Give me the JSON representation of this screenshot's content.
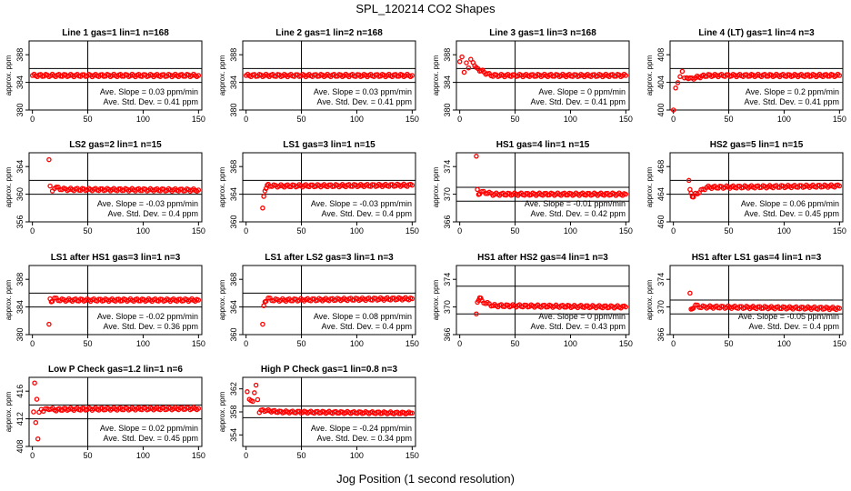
{
  "title": "SPL_120214  CO2 Shapes",
  "xlabel": "Jog Position (1 second resolution)",
  "colors": {
    "points": "#ff0000",
    "axes": "#000000",
    "background": "#ffffff"
  },
  "chart_data": [
    {
      "type": "scatter",
      "title": "Line 1 gas=1 lin=1 n=168",
      "ylabel": "approx. ppm",
      "xlim": [
        -3,
        153
      ],
      "ylim": [
        380,
        390
      ],
      "yticks": [
        380,
        384,
        388
      ],
      "xticks": [
        0,
        50,
        100,
        150
      ],
      "hlines": [
        386,
        384
      ],
      "vline": 50,
      "slope_text": "Ave. Slope = 0.03  ppm/min",
      "std_text": "Ave. Std. Dev. = 0.41  ppm",
      "series": [
        {
          "x": [
            0,
            150
          ],
          "y": [
            385,
            385
          ]
        }
      ]
    },
    {
      "type": "scatter",
      "title": "Line 2 gas=1 lin=2 n=168",
      "ylabel": "approx. ppm",
      "xlim": [
        -3,
        153
      ],
      "ylim": [
        380,
        390
      ],
      "yticks": [
        380,
        384,
        388
      ],
      "xticks": [
        0,
        50,
        100,
        150
      ],
      "hlines": [
        386,
        384
      ],
      "vline": 50,
      "slope_text": "Ave. Slope = 0.03  ppm/min",
      "std_text": "Ave. Std. Dev. = 0.41  ppm",
      "series": [
        {
          "x": [
            0,
            150
          ],
          "y": [
            385,
            385
          ]
        }
      ]
    },
    {
      "type": "scatter",
      "title": "Line 3 gas=1 lin=3 n=168",
      "ylabel": "approx. ppm",
      "xlim": [
        -3,
        153
      ],
      "ylim": [
        380,
        390
      ],
      "yticks": [
        380,
        384,
        388
      ],
      "xticks": [
        0,
        50,
        100,
        150
      ],
      "hlines": [
        386,
        384
      ],
      "vline": 50,
      "slope_text": "Ave. Slope = 0  ppm/min",
      "std_text": "Ave. Std. Dev. = 0.41  ppm",
      "series": [
        {
          "x": [
            0,
            2,
            4,
            6,
            8,
            10,
            12,
            15,
            18,
            22,
            25,
            30,
            150
          ],
          "y": [
            387,
            387.5,
            385.5,
            387,
            386,
            387.2,
            387,
            386,
            385.8,
            385.5,
            385.2,
            385,
            385
          ]
        }
      ]
    },
    {
      "type": "scatter",
      "title": "Line 4 (LT) gas=1 lin=4 n=3",
      "ylabel": "approx. ppm",
      "xlim": [
        -3,
        153
      ],
      "ylim": [
        400,
        410
      ],
      "yticks": [
        400,
        404,
        408
      ],
      "xticks": [
        0,
        50,
        100,
        150
      ],
      "hlines": [
        406,
        404
      ],
      "vline": 50,
      "slope_text": "Ave. Slope = 0.2  ppm/min",
      "std_text": "Ave. Std. Dev. = 0.41  ppm",
      "series": [
        {
          "x": [
            0,
            2,
            4,
            6,
            8,
            10,
            12,
            15,
            20,
            30,
            150
          ],
          "y": [
            400,
            403,
            404,
            405,
            405.5,
            404.5,
            404.8,
            404.5,
            404.7,
            405,
            405
          ]
        }
      ]
    },
    {
      "type": "scatter",
      "title": "LS2 gas=2 lin=1 n=15",
      "ylabel": "approx. ppm",
      "xlim": [
        -3,
        153
      ],
      "ylim": [
        356,
        366
      ],
      "yticks": [
        356,
        360,
        364
      ],
      "xticks": [
        0,
        50,
        100,
        150
      ],
      "hlines": [
        362,
        360
      ],
      "vline": 50,
      "slope_text": "Ave. Slope = -0.03  ppm/min",
      "std_text": "Ave. Std. Dev. = 0.4  ppm",
      "series": [
        {
          "x": [
            15,
            16,
            18,
            20,
            25,
            30,
            150
          ],
          "y": [
            365,
            361,
            360.5,
            361,
            360.8,
            360.7,
            360.6
          ]
        }
      ]
    },
    {
      "type": "scatter",
      "title": "LS1 gas=3 lin=1 n=15",
      "ylabel": "approx. ppm",
      "xlim": [
        -3,
        153
      ],
      "ylim": [
        360,
        370
      ],
      "yticks": [
        360,
        364,
        368
      ],
      "xticks": [
        0,
        50,
        100,
        150
      ],
      "hlines": [
        366,
        364
      ],
      "vline": 50,
      "slope_text": "Ave. Slope = -0.03  ppm/min",
      "std_text": "Ave. Std. Dev. = 0.4  ppm",
      "series": [
        {
          "x": [
            15,
            16,
            17,
            18,
            19,
            20,
            25,
            30,
            150
          ],
          "y": [
            362,
            363.5,
            364.5,
            365,
            365.2,
            365.3,
            365.2,
            365.2,
            365.3
          ]
        }
      ]
    },
    {
      "type": "scatter",
      "title": "HS1 gas=4 lin=1 n=15",
      "ylabel": "approx. ppm",
      "xlim": [
        -3,
        153
      ],
      "ylim": [
        366,
        376
      ],
      "yticks": [
        366,
        370,
        374
      ],
      "xticks": [
        0,
        50,
        100,
        150
      ],
      "hlines": [
        371,
        369
      ],
      "vline": 50,
      "slope_text": "Ave. Slope = -0.01  ppm/min",
      "std_text": "Ave. Std. Dev. = 0.42  ppm",
      "series": [
        {
          "x": [
            15,
            16,
            17,
            18,
            20,
            25,
            30,
            150
          ],
          "y": [
            375.5,
            370.5,
            370,
            370.2,
            370.3,
            370.2,
            370,
            370
          ]
        }
      ]
    },
    {
      "type": "scatter",
      "title": "HS2 gas=5 lin=1 n=15",
      "ylabel": "approx. ppm",
      "xlim": [
        -3,
        153
      ],
      "ylim": [
        460,
        470
      ],
      "yticks": [
        460,
        464,
        468
      ],
      "xticks": [
        0,
        50,
        100,
        150
      ],
      "hlines": [
        466,
        464
      ],
      "vline": 50,
      "slope_text": "Ave. Slope = 0.06  ppm/min",
      "std_text": "Ave. Std. Dev. = 0.45  ppm",
      "series": [
        {
          "x": [
            14,
            15,
            16,
            17,
            18,
            20,
            25,
            30,
            150
          ],
          "y": [
            466,
            464.5,
            464.2,
            463.8,
            463.5,
            464,
            464.5,
            465,
            465.2
          ]
        }
      ]
    },
    {
      "type": "scatter",
      "title": "LS1 after HS1 gas=3 lin=1 n=3",
      "ylabel": "approx. ppm",
      "xlim": [
        -3,
        153
      ],
      "ylim": [
        380,
        390
      ],
      "yticks": [
        380,
        384,
        388
      ],
      "xticks": [
        0,
        50,
        100,
        150
      ],
      "hlines": [
        386,
        384
      ],
      "vline": 50,
      "slope_text": "Ave. Slope = -0.02  ppm/min",
      "std_text": "Ave. Std. Dev. = 0.36  ppm",
      "series": [
        {
          "x": [
            15,
            16,
            17,
            18,
            20,
            25,
            30,
            150
          ],
          "y": [
            381.5,
            385,
            384.8,
            385,
            385.2,
            385,
            385,
            385
          ]
        }
      ]
    },
    {
      "type": "scatter",
      "title": "LS1 after LS2 gas=3 lin=1 n=3",
      "ylabel": "approx. ppm",
      "xlim": [
        -3,
        153
      ],
      "ylim": [
        360,
        370
      ],
      "yticks": [
        360,
        364,
        368
      ],
      "xticks": [
        0,
        50,
        100,
        150
      ],
      "hlines": [
        366,
        364
      ],
      "vline": 50,
      "slope_text": "Ave. Slope = 0.08  ppm/min",
      "std_text": "Ave. Std. Dev. = 0.4  ppm",
      "series": [
        {
          "x": [
            15,
            16,
            17,
            18,
            20,
            25,
            30,
            150
          ],
          "y": [
            361.5,
            364,
            364.8,
            365,
            365.2,
            365,
            365,
            365.2
          ]
        }
      ]
    },
    {
      "type": "scatter",
      "title": "HS1 after HS2 gas=4 lin=1 n=3",
      "ylabel": "approx. ppm",
      "xlim": [
        -3,
        153
      ],
      "ylim": [
        366,
        376
      ],
      "yticks": [
        366,
        370,
        374
      ],
      "xticks": [
        0,
        50,
        100,
        150
      ],
      "hlines": [
        373,
        369
      ],
      "vline": 50,
      "slope_text": "Ave. Slope = 0  ppm/min",
      "std_text": "Ave. Std. Dev. = 0.43  ppm",
      "series": [
        {
          "x": [
            15,
            16,
            17,
            18,
            19,
            20,
            25,
            30,
            150
          ],
          "y": [
            369,
            370.5,
            371,
            371.5,
            371.2,
            370.8,
            370.5,
            370.2,
            370
          ]
        }
      ]
    },
    {
      "type": "scatter",
      "title": "HS1 after LS1 gas=4 lin=1 n=3",
      "ylabel": "approx. ppm",
      "xlim": [
        -3,
        153
      ],
      "ylim": [
        366,
        376
      ],
      "yticks": [
        366,
        370,
        374
      ],
      "xticks": [
        0,
        50,
        100,
        150
      ],
      "hlines": [
        371,
        369
      ],
      "vline": 50,
      "slope_text": "Ave. Slope = -0.05  ppm/min",
      "std_text": "Ave. Std. Dev. = 0.4  ppm",
      "series": [
        {
          "x": [
            15,
            16,
            17,
            18,
            20,
            25,
            30,
            150
          ],
          "y": [
            372,
            369.5,
            369.8,
            370,
            370.2,
            370,
            370,
            369.8
          ]
        }
      ]
    },
    {
      "type": "scatter",
      "title": "Low P Check gas=1.2 lin=1 n=6",
      "ylabel": "approx. ppm",
      "xlim": [
        -3,
        153
      ],
      "ylim": [
        408,
        418
      ],
      "yticks": [
        408,
        412,
        416
      ],
      "xticks": [
        0,
        50,
        100,
        150
      ],
      "hlines": [
        414,
        412
      ],
      "vline": 50,
      "slope_text": "Ave. Slope = 0.02  ppm/min",
      "std_text": "Ave. Std. Dev. = 0.45  ppm",
      "series": [
        {
          "x": [
            1,
            2,
            3,
            4,
            5,
            6,
            8,
            10,
            15,
            20,
            30,
            150
          ],
          "y": [
            413,
            417,
            411.5,
            415,
            409,
            412.8,
            413.5,
            413.2,
            413.5,
            413.3,
            413.4,
            413.5
          ]
        }
      ]
    },
    {
      "type": "scatter",
      "title": "High P Check gas=1 lin=0.8 n=3",
      "ylabel": "approx. ppm",
      "xlim": [
        -3,
        153
      ],
      "ylim": [
        352,
        364
      ],
      "yticks": [
        354,
        358,
        362
      ],
      "xticks": [
        0,
        50,
        100,
        150
      ],
      "hlines": [
        359,
        357
      ],
      "vline": 50,
      "slope_text": "Ave. Slope = -0.24  ppm/min",
      "std_text": "Ave. Std. Dev. = 0.34  ppm",
      "series": [
        {
          "x": [
            1,
            3,
            6,
            9,
            12,
            15,
            20,
            30,
            150
          ],
          "y": [
            361.5,
            360,
            360,
            362.5,
            358,
            358.3,
            358.2,
            358,
            357.8
          ]
        }
      ]
    }
  ]
}
